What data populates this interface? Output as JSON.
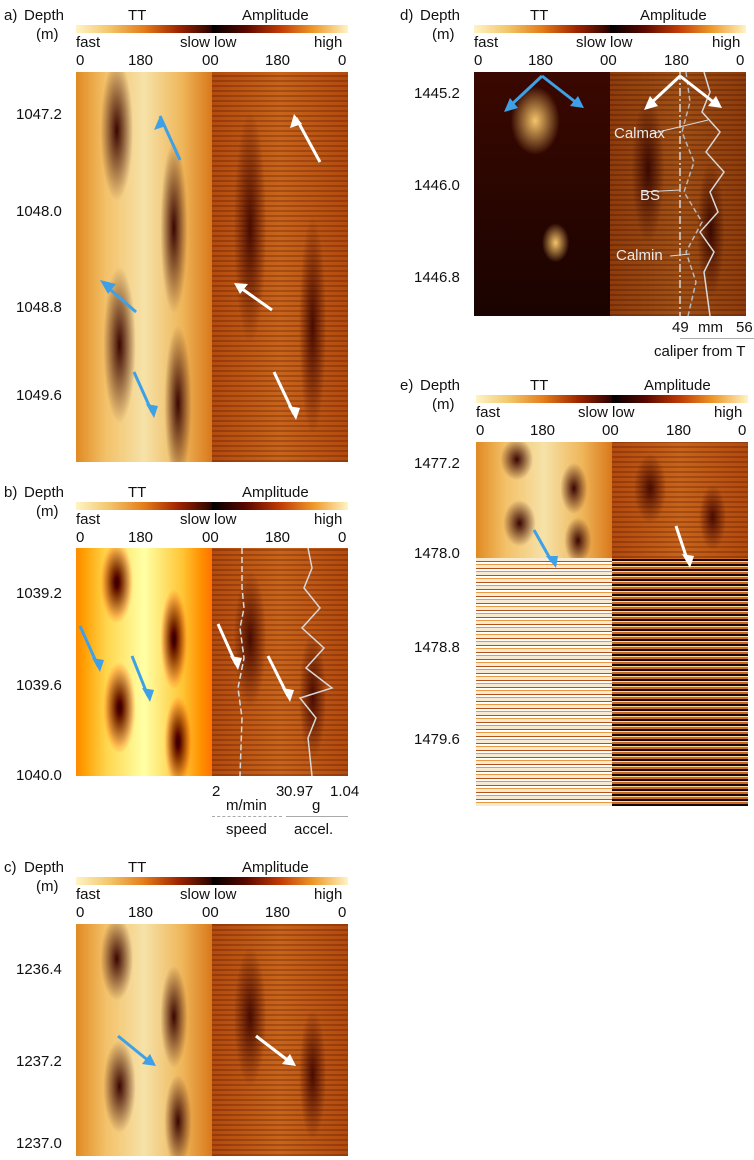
{
  "colors": {
    "blue_arrow": "#3ea0e6",
    "white_arrow": "#ffffff",
    "log_curve": "#d8d8d8"
  },
  "common": {
    "depth_label": "Depth",
    "unit_label": "(m)",
    "tt_label": "TT",
    "amp_label": "Amplitude",
    "fast": "fast",
    "slow": "slow",
    "low": "low",
    "high": "high",
    "tick_0": "0",
    "tick_180": "180",
    "tick_00": "00"
  },
  "panels": [
    {
      "letter": "a)",
      "depths": [
        "1047.2",
        "1048.0",
        "1048.8",
        "1049.6"
      ]
    },
    {
      "letter": "b)",
      "depths": [
        "1039.2",
        "1039.6",
        "1040.0"
      ],
      "speed": {
        "min": "2",
        "unit": "m/min",
        "max": "3",
        "label": "speed"
      },
      "accel": {
        "min": "0.97",
        "unit": "g",
        "max": "1.04",
        "label": "accel."
      }
    },
    {
      "letter": "c)",
      "depths": [
        "1236.4",
        "1237.2",
        "1237.0"
      ]
    },
    {
      "letter": "d)",
      "depths": [
        "1445.2",
        "1446.0",
        "1446.8"
      ],
      "annotations": [
        "Calmax",
        "BS",
        "Calmin"
      ],
      "caliper": {
        "min": "49",
        "unit": "mm",
        "max": "56",
        "label": "caliper from T"
      }
    },
    {
      "letter": "e)",
      "depths": [
        "1477.2",
        "1478.0",
        "1478.8",
        "1479.6"
      ]
    }
  ]
}
